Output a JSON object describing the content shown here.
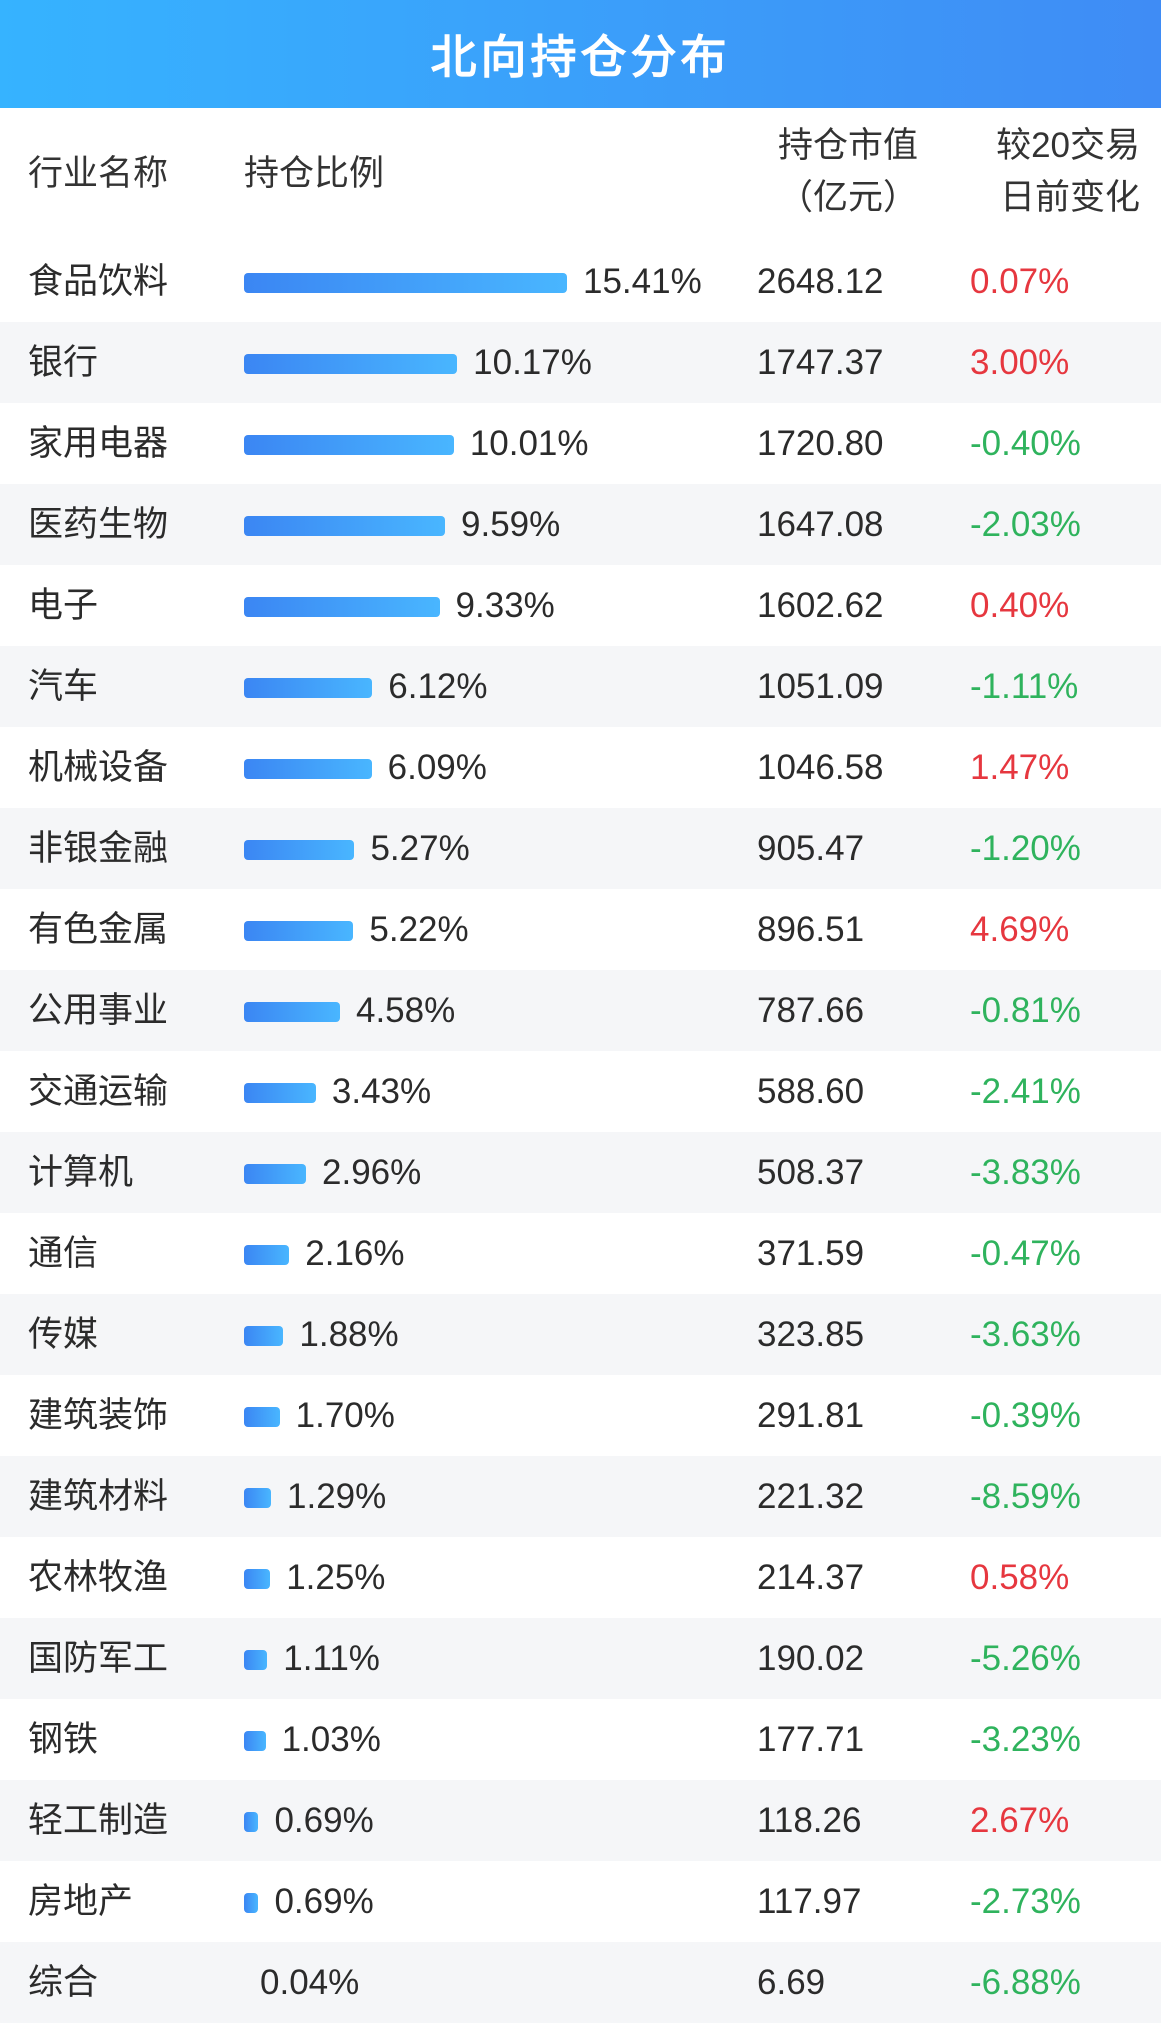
{
  "title": "北向持仓分布",
  "headers": {
    "industry": "行业名称",
    "ratio": "持仓比例",
    "value_line1": "持仓市值",
    "value_line2": "（亿元）",
    "change_line1": "较20交易",
    "change_line2": "日前变化"
  },
  "colors": {
    "title_bar_start": "#36b3ff",
    "title_bar_end": "#3f8cf5",
    "bar_start": "#3b86f3",
    "bar_end": "#49b6ff",
    "positive": "#e6373f",
    "negative": "#2fb35d",
    "row_alt": "#f5f6f8"
  },
  "chart_data": {
    "type": "bar",
    "categories": [
      "食品饮料",
      "银行",
      "家用电器",
      "医药生物",
      "电子",
      "汽车",
      "机械设备",
      "非银金融",
      "有色金属",
      "公用事业",
      "交通运输",
      "计算机",
      "通信",
      "传媒",
      "建筑装饰",
      "建筑材料",
      "农林牧渔",
      "国防军工",
      "钢铁",
      "轻工制造",
      "房地产",
      "综合"
    ],
    "ratio_values": [
      15.41,
      10.17,
      10.01,
      9.59,
      9.33,
      6.12,
      6.09,
      5.27,
      5.22,
      4.58,
      3.43,
      2.96,
      2.16,
      1.88,
      1.7,
      1.29,
      1.25,
      1.11,
      1.03,
      0.69,
      0.69,
      0.04
    ],
    "ratio_labels": [
      "15.41%",
      "10.17%",
      "10.01%",
      "9.59%",
      "9.33%",
      "6.12%",
      "6.09%",
      "5.27%",
      "5.22%",
      "4.58%",
      "3.43%",
      "2.96%",
      "2.16%",
      "1.88%",
      "1.70%",
      "1.29%",
      "1.25%",
      "1.11%",
      "1.03%",
      "0.69%",
      "0.69%",
      "0.04%"
    ],
    "market_values": [
      "2648.12",
      "1747.37",
      "1720.80",
      "1647.08",
      "1602.62",
      "1051.09",
      "1046.58",
      "905.47",
      "896.51",
      "787.66",
      "588.60",
      "508.37",
      "371.59",
      "323.85",
      "291.81",
      "221.32",
      "214.37",
      "190.02",
      "177.71",
      "118.26",
      "117.97",
      "6.69"
    ],
    "changes": [
      "0.07%",
      "3.00%",
      "-0.40%",
      "-2.03%",
      "0.40%",
      "-1.11%",
      "1.47%",
      "-1.20%",
      "4.69%",
      "-0.81%",
      "-2.41%",
      "-3.83%",
      "-0.47%",
      "-3.63%",
      "-0.39%",
      "-8.59%",
      "0.58%",
      "-5.26%",
      "-3.23%",
      "2.67%",
      "-2.73%",
      "-6.88%"
    ]
  }
}
